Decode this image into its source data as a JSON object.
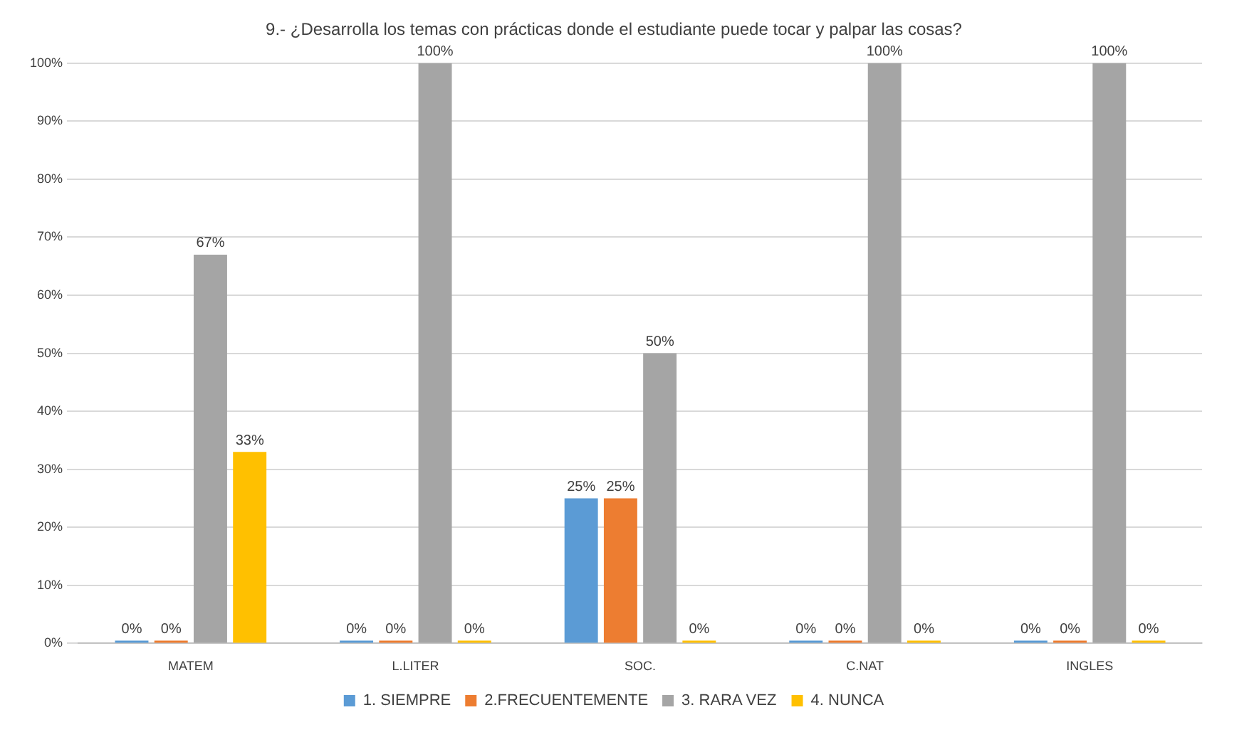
{
  "chart_data": {
    "type": "bar",
    "title": "9.- ¿Desarrolla los temas con prácticas donde el estudiante puede tocar y palpar las cosas?",
    "categories": [
      "MATEM",
      "L.LITER",
      "SOC.",
      "C.NAT",
      "INGLES"
    ],
    "series": [
      {
        "name": "1. SIEMPRE",
        "color": "#5b9bd5",
        "values": [
          0,
          0,
          25,
          0,
          0
        ],
        "value_labels": [
          "0%",
          "0%",
          "25%",
          "0%",
          "0%"
        ]
      },
      {
        "name": "2.FRECUENTEMENTE",
        "color": "#ed7d31",
        "values": [
          0,
          0,
          25,
          0,
          0
        ],
        "value_labels": [
          "0%",
          "0%",
          "25%",
          "0%",
          "0%"
        ]
      },
      {
        "name": "3. RARA VEZ",
        "color": "#a5a5a5",
        "values": [
          67,
          100,
          50,
          100,
          100
        ],
        "value_labels": [
          "67%",
          "100%",
          "50%",
          "100%",
          "100%"
        ]
      },
      {
        "name": "4. NUNCA",
        "color": "#ffc000",
        "values": [
          33,
          0,
          0,
          0,
          0
        ],
        "value_labels": [
          "33%",
          "0%",
          "0%",
          "0%",
          "0%"
        ]
      }
    ],
    "ylim": [
      0,
      100
    ],
    "yticks": [
      {
        "value": 0,
        "label": "0%"
      },
      {
        "value": 10,
        "label": "10%"
      },
      {
        "value": 20,
        "label": "20%"
      },
      {
        "value": 30,
        "label": "30%"
      },
      {
        "value": 40,
        "label": "40%"
      },
      {
        "value": 50,
        "label": "50%"
      },
      {
        "value": 60,
        "label": "60%"
      },
      {
        "value": 70,
        "label": "70%"
      },
      {
        "value": 80,
        "label": "80%"
      },
      {
        "value": 90,
        "label": "90%"
      },
      {
        "value": 100,
        "label": "100%"
      }
    ],
    "grid": "y",
    "legend": "bottom"
  }
}
